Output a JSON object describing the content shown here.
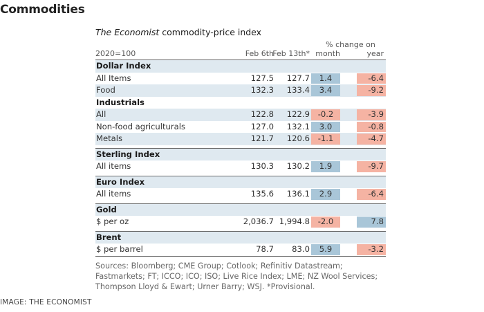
{
  "page": {
    "heading": "Commodities",
    "credit": "IMAGE: THE ECONOMIST"
  },
  "figure": {
    "title_italic": "The Economist",
    "title_rest": " commodity-price index",
    "base": "2020=100",
    "columns": {
      "col1": "Feb 6th",
      "col2": "Feb 13th*",
      "pct_group": "% change on",
      "month": "month",
      "year": "year"
    },
    "sections": [
      {
        "name": "Dollar Index",
        "rows": [
          {
            "label": "All Items",
            "v1": "127.5",
            "v2": "127.7",
            "month": "1.4",
            "year": "-6.4"
          },
          {
            "label": "Food",
            "v1": "132.3",
            "v2": "133.4",
            "month": "3.4",
            "year": "-9.2"
          }
        ]
      },
      {
        "name": "Industrials",
        "rows": [
          {
            "label": "All",
            "v1": "122.8",
            "v2": "122.9",
            "month": "-0.2",
            "year": "-3.9"
          },
          {
            "label": "Non-food agriculturals",
            "v1": "127.0",
            "v2": "132.1",
            "month": "3.0",
            "year": "-0.8"
          },
          {
            "label": "Metals",
            "v1": "121.7",
            "v2": "120.6",
            "month": "-1.1",
            "year": "-4.7"
          }
        ]
      },
      {
        "name": "Sterling Index",
        "rows": [
          {
            "label": "All items",
            "v1": "130.3",
            "v2": "130.2",
            "month": "1.9",
            "year": "-9.7"
          }
        ]
      },
      {
        "name": "Euro Index",
        "rows": [
          {
            "label": "All items",
            "v1": "135.6",
            "v2": "136.1",
            "month": "2.9",
            "year": "-6.4"
          }
        ]
      },
      {
        "name": "Gold",
        "rows": [
          {
            "label": "$ per oz",
            "v1": "2,036.7",
            "v2": "1,994.8",
            "month": "-2.0",
            "year": "7.8"
          }
        ]
      },
      {
        "name": "Brent",
        "rows": [
          {
            "label": "$ per barrel",
            "v1": "78.7",
            "v2": "83.0",
            "month": "5.9",
            "year": "-3.2"
          }
        ]
      }
    ],
    "sources": "Sources: Bloomberg; CME Group; Cotlook; Refinitiv Datastream; Fastmarkets; FT; ICCO; ICO; ISO; Live Rice Index; LME; NZ Wool Services; Thompson Lloyd & Ewart; Urner Barry; WSJ.  *Provisional.",
    "colors": {
      "positive": "#a9c6d8",
      "negative": "#f5b3a3",
      "band": "#dfe9f0"
    }
  },
  "chart_data": {
    "type": "table",
    "title": "The Economist commodity-price index",
    "subtitle": "2020=100",
    "columns": [
      "",
      "Feb 6th",
      "Feb 13th*",
      "% change on month",
      "% change on year"
    ],
    "rows": [
      {
        "section": "Dollar Index",
        "label": "All Items",
        "values": [
          127.5,
          127.7,
          1.4,
          -6.4
        ]
      },
      {
        "section": "Dollar Index",
        "label": "Food",
        "values": [
          132.3,
          133.4,
          3.4,
          -9.2
        ]
      },
      {
        "section": "Industrials",
        "label": "All",
        "values": [
          122.8,
          122.9,
          -0.2,
          -3.9
        ]
      },
      {
        "section": "Industrials",
        "label": "Non-food agriculturals",
        "values": [
          127.0,
          132.1,
          3.0,
          -0.8
        ]
      },
      {
        "section": "Industrials",
        "label": "Metals",
        "values": [
          121.7,
          120.6,
          -1.1,
          -4.7
        ]
      },
      {
        "section": "Sterling Index",
        "label": "All items",
        "values": [
          130.3,
          130.2,
          1.9,
          -9.7
        ]
      },
      {
        "section": "Euro Index",
        "label": "All items",
        "values": [
          135.6,
          136.1,
          2.9,
          -6.4
        ]
      },
      {
        "section": "Gold",
        "label": "$ per oz",
        "values": [
          2036.7,
          1994.8,
          -2.0,
          7.8
        ]
      },
      {
        "section": "Brent",
        "label": "$ per barrel",
        "values": [
          78.7,
          83.0,
          5.9,
          -3.2
        ]
      }
    ],
    "notes": "*Provisional."
  }
}
